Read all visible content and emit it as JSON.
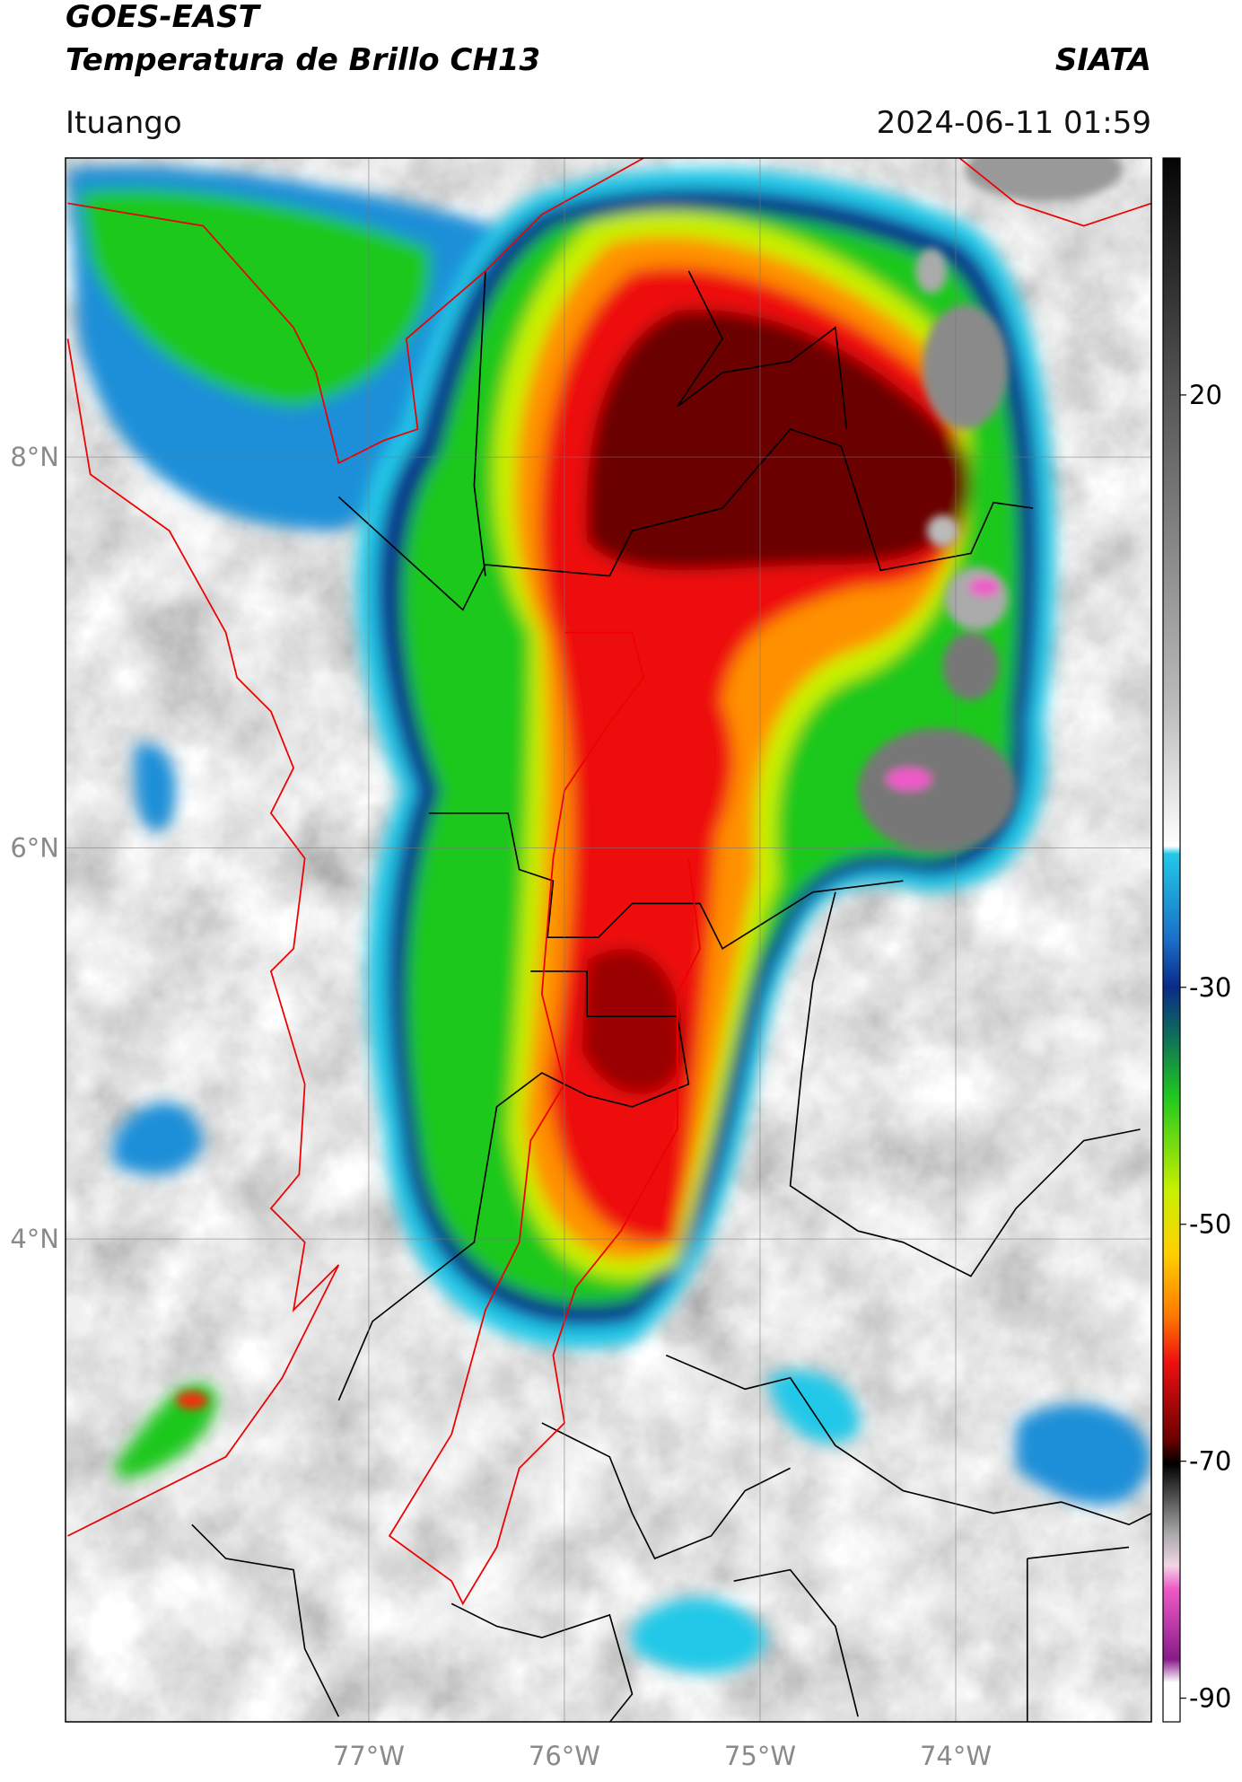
{
  "header": {
    "satellite": "GOES-EAST",
    "product": "Temperatura de Brillo CH13",
    "source": "SIATA",
    "location": "Ituango",
    "datetime": "2024-06-11 01:59"
  },
  "map": {
    "xlim": [
      -78.55,
      -73
    ],
    "ylim": [
      1.53,
      9.53
    ],
    "xticks": [
      {
        "value": -77,
        "label": "77°W"
      },
      {
        "value": -76,
        "label": "76°W"
      },
      {
        "value": -75,
        "label": "75°W"
      },
      {
        "value": -74,
        "label": "74°W"
      }
    ],
    "yticks": [
      {
        "value": 8,
        "label": "8°N"
      },
      {
        "value": 6,
        "label": "6°N"
      },
      {
        "value": 4,
        "label": "4°N"
      }
    ],
    "grid": true
  },
  "colorbar": {
    "lim": [
      -92,
      40
    ],
    "ticks": [
      20,
      -30,
      -50,
      -70,
      -90
    ]
  }
}
